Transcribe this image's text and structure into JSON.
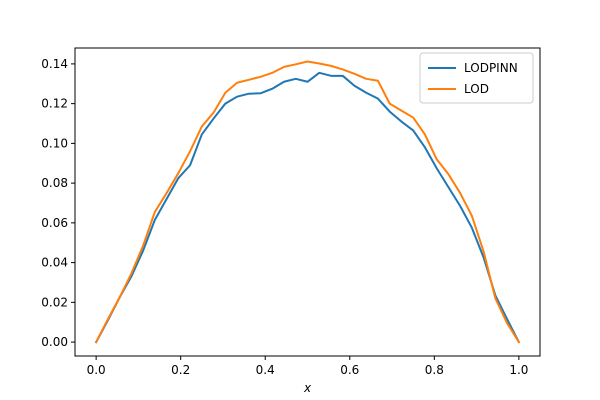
{
  "chart_data": {
    "type": "line",
    "title": "",
    "xlabel": "x",
    "ylabel": "",
    "xlim": [
      -0.05,
      1.05
    ],
    "ylim": [
      -0.007,
      0.148
    ],
    "xticks": [
      0.0,
      0.2,
      0.4,
      0.6,
      0.8,
      1.0
    ],
    "xtick_labels": [
      "0.0",
      "0.2",
      "0.4",
      "0.6",
      "0.8",
      "1.0"
    ],
    "yticks": [
      0.0,
      0.02,
      0.04,
      0.06,
      0.08,
      0.1,
      0.12,
      0.14
    ],
    "ytick_labels": [
      "0.00",
      "0.02",
      "0.04",
      "0.06",
      "0.08",
      "0.10",
      "0.12",
      "0.14"
    ],
    "grid": false,
    "legend_position": "top-right",
    "series": [
      {
        "name": "LODPINN",
        "color": "#1f77b4",
        "x": [
          0,
          0.0278,
          0.0556,
          0.0833,
          0.1111,
          0.1389,
          0.1667,
          0.1944,
          0.2222,
          0.25,
          0.2778,
          0.3056,
          0.3333,
          0.3611,
          0.3889,
          0.4167,
          0.4444,
          0.4722,
          0.5,
          0.5278,
          0.5556,
          0.5833,
          0.6111,
          0.6389,
          0.6667,
          0.6944,
          0.7222,
          0.75,
          0.7778,
          0.8056,
          0.8333,
          0.8611,
          0.8889,
          0.9167,
          0.9444,
          0.9722,
          1.0
        ],
        "y": [
          0.0,
          0.011,
          0.0225,
          0.033,
          0.046,
          0.0615,
          0.072,
          0.0825,
          0.089,
          0.1045,
          0.1125,
          0.12,
          0.1235,
          0.125,
          0.1252,
          0.1275,
          0.131,
          0.1325,
          0.131,
          0.1355,
          0.134,
          0.134,
          0.129,
          0.1255,
          0.1225,
          0.116,
          0.111,
          0.1065,
          0.098,
          0.0875,
          0.078,
          0.0685,
          0.0575,
          0.0425,
          0.0235,
          0.0115,
          0.0
        ]
      },
      {
        "name": "LOD",
        "color": "#ff7f0e",
        "x": [
          0,
          0.0278,
          0.0556,
          0.0833,
          0.1111,
          0.1389,
          0.1667,
          0.1944,
          0.2222,
          0.25,
          0.2778,
          0.3056,
          0.3333,
          0.3611,
          0.3889,
          0.4167,
          0.4444,
          0.4722,
          0.5,
          0.5278,
          0.5556,
          0.5833,
          0.6111,
          0.6389,
          0.6667,
          0.6944,
          0.7222,
          0.75,
          0.7778,
          0.8056,
          0.8333,
          0.8611,
          0.8889,
          0.9167,
          0.9444,
          0.9722,
          1.0
        ],
        "y": [
          0.0,
          0.0115,
          0.0225,
          0.0345,
          0.0485,
          0.0655,
          0.075,
          0.085,
          0.096,
          0.1085,
          0.1155,
          0.1255,
          0.1305,
          0.132,
          0.1335,
          0.1355,
          0.1385,
          0.1398,
          0.1412,
          0.1402,
          0.139,
          0.1372,
          0.135,
          0.1325,
          0.1315,
          0.12,
          0.1165,
          0.113,
          0.1045,
          0.092,
          0.0845,
          0.075,
          0.0635,
          0.0455,
          0.022,
          0.0095,
          0.0
        ]
      }
    ]
  }
}
